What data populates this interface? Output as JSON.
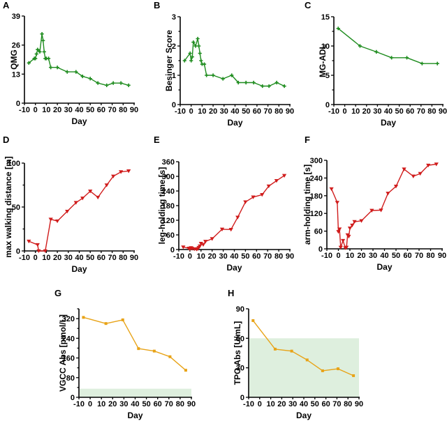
{
  "chart_data": [
    {
      "id": "A",
      "type": "line",
      "panel_label": "A",
      "xlabel": "Day",
      "ylabel": "QMG",
      "xlim": [
        -10,
        90
      ],
      "ylim": [
        0,
        39
      ],
      "xticks": [
        "-10",
        "0",
        "10",
        "20",
        "30",
        "40",
        "50",
        "60",
        "70",
        "80",
        "90"
      ],
      "yticks": [
        "0",
        "13",
        "26",
        "39"
      ],
      "marker": "plus",
      "color": "#1e8c1e",
      "series": [
        {
          "name": "QMG",
          "x": [
            -6,
            -1,
            0,
            1,
            2,
            4,
            6,
            7,
            8,
            9,
            10,
            12,
            14,
            20,
            29,
            37,
            43,
            50,
            57,
            65,
            71,
            78,
            85
          ],
          "y": [
            18,
            20,
            20,
            22,
            24,
            23,
            31,
            28,
            23,
            20,
            20,
            20,
            16,
            16,
            14,
            14,
            12,
            11,
            9,
            8,
            9,
            9,
            8
          ]
        }
      ]
    },
    {
      "id": "B",
      "type": "line",
      "panel_label": "B",
      "xlabel": "Day",
      "ylabel": "Besinger Score",
      "xlim": [
        -10,
        90
      ],
      "ylim": [
        0,
        3
      ],
      "xticks": [
        "-10",
        "0",
        "10",
        "20",
        "30",
        "40",
        "50",
        "60",
        "70",
        "80",
        "90"
      ],
      "yticks": [
        "0",
        "1",
        "2",
        "3"
      ],
      "marker": "plus",
      "color": "#1e8c1e",
      "series": [
        {
          "name": "Besinger Score",
          "x": [
            -6,
            -1,
            0,
            1,
            2,
            4,
            6,
            7,
            8,
            9,
            10,
            12,
            14,
            20,
            29,
            37,
            43,
            50,
            57,
            65,
            71,
            78,
            85
          ],
          "y": [
            1.5,
            1.75,
            1.5,
            1.63,
            2.13,
            2.0,
            2.25,
            2.0,
            1.75,
            1.5,
            1.38,
            1.38,
            1.0,
            1.0,
            0.88,
            1.0,
            0.75,
            0.75,
            0.75,
            0.63,
            0.63,
            0.75,
            0.63
          ]
        }
      ]
    },
    {
      "id": "C",
      "type": "line",
      "panel_label": "C",
      "xlabel": "Day",
      "ylabel": "MG-ADL",
      "xlim": [
        -10,
        90
      ],
      "ylim": [
        0,
        15
      ],
      "xticks": [
        "-10",
        "0",
        "10",
        "20",
        "30",
        "40",
        "50",
        "60",
        "70",
        "80",
        "90"
      ],
      "yticks": [
        "0",
        "5",
        "10",
        "15"
      ],
      "marker": "plus",
      "color": "#1e8c1e",
      "series": [
        {
          "name": "MG-ADL",
          "x": [
            -6,
            14,
            29,
            43,
            57,
            71,
            85
          ],
          "y": [
            13,
            10,
            9,
            8,
            8,
            7,
            7
          ]
        }
      ]
    },
    {
      "id": "D",
      "type": "line",
      "panel_label": "D",
      "xlabel": "Day",
      "ylabel": "max walking distance [m]",
      "xlim": [
        -10,
        90
      ],
      "ylim": [
        0,
        100
      ],
      "xticks": [
        "-10",
        "0",
        "10",
        "20",
        "30",
        "40",
        "50",
        "60",
        "70",
        "80",
        "90"
      ],
      "yticks": [
        "0",
        "50",
        "100"
      ],
      "marker": "triangle-down",
      "color": "#d01c1c",
      "series": [
        {
          "name": "max walking distance",
          "x": [
            -6,
            2,
            3,
            9,
            14,
            20,
            29,
            37,
            43,
            50,
            57,
            65,
            71,
            78,
            85
          ],
          "y": [
            11,
            7,
            0,
            0,
            36,
            34,
            45,
            55,
            60,
            68,
            61,
            75,
            85,
            90,
            91
          ]
        }
      ]
    },
    {
      "id": "E",
      "type": "line",
      "panel_label": "E",
      "xlabel": "Day",
      "ylabel": "leg-holding time [s]",
      "xlim": [
        -10,
        90
      ],
      "ylim": [
        0,
        360
      ],
      "xticks": [
        "-10",
        "0",
        "10",
        "20",
        "30",
        "40",
        "50",
        "60",
        "70",
        "80",
        "90"
      ],
      "yticks": [
        "0",
        "60",
        "120",
        "180",
        "240",
        "300",
        "360"
      ],
      "marker": "triangle-down",
      "color": "#d01c1c",
      "series": [
        {
          "name": "leg-holding time",
          "x": [
            -6,
            -1,
            0,
            1,
            2,
            4,
            6,
            7,
            8,
            9,
            10,
            12,
            14,
            20,
            29,
            37,
            43,
            50,
            57,
            65,
            71,
            78,
            85
          ],
          "y": [
            10,
            5,
            3,
            7,
            4,
            2,
            1,
            3,
            8,
            14,
            25,
            20,
            33,
            44,
            83,
            82,
            132,
            195,
            215,
            225,
            260,
            282,
            303
          ]
        }
      ]
    },
    {
      "id": "F",
      "type": "line",
      "panel_label": "F",
      "xlabel": "Day",
      "ylabel": "arm-holding time [s]",
      "xlim": [
        -10,
        90
      ],
      "ylim": [
        0,
        300
      ],
      "xticks": [
        "-10",
        "0",
        "10",
        "20",
        "30",
        "40",
        "50",
        "60",
        "70",
        "80",
        "90"
      ],
      "yticks": [
        "0",
        "60",
        "120",
        "180",
        "240",
        "300"
      ],
      "marker": "triangle-down",
      "color": "#d01c1c",
      "series": [
        {
          "name": "arm-holding time",
          "x": [
            -6,
            -1,
            0,
            1,
            2,
            4,
            6,
            7,
            8,
            9,
            10,
            12,
            14,
            20,
            29,
            37,
            43,
            50,
            57,
            65,
            71,
            78,
            85
          ],
          "y": [
            203,
            157,
            58,
            67,
            5,
            28,
            3,
            5,
            47,
            42,
            70,
            80,
            92,
            95,
            130,
            131,
            188,
            212,
            270,
            246,
            255,
            283,
            287
          ]
        }
      ]
    },
    {
      "id": "G",
      "type": "line",
      "panel_label": "G",
      "xlabel": "Day",
      "ylabel": "VGCC Abs [pmol/L]",
      "xlim": [
        -10,
        90
      ],
      "ylim": [
        0,
        360
      ],
      "xticks": [
        "-10",
        "0",
        "10",
        "20",
        "30",
        "40",
        "50",
        "60",
        "70",
        "80",
        "90"
      ],
      "yticks": [
        "0",
        "80",
        "160",
        "240",
        "320"
      ],
      "marker": "square",
      "color": "#e8a317",
      "reference_band": {
        "from": 0,
        "to": 35,
        "color": "#deefde"
      },
      "series": [
        {
          "name": "VGCC Abs",
          "x": [
            -6,
            14,
            29,
            43,
            57,
            71,
            85
          ],
          "y": [
            325,
            300,
            315,
            198,
            188,
            165,
            110
          ]
        }
      ]
    },
    {
      "id": "H",
      "type": "line",
      "panel_label": "H",
      "xlabel": "Day",
      "ylabel": "TPO Abs [U/mL]",
      "xlim": [
        -10,
        90
      ],
      "ylim": [
        0,
        90
      ],
      "xticks": [
        "-10",
        "0",
        "10",
        "20",
        "30",
        "40",
        "50",
        "60",
        "70",
        "80",
        "90"
      ],
      "yticks": [
        "0",
        "30",
        "60",
        "90"
      ],
      "marker": "square",
      "color": "#e8a317",
      "reference_band": {
        "from": 0,
        "to": 60,
        "color": "#deefde"
      },
      "series": [
        {
          "name": "TPO Abs",
          "x": [
            -6,
            14,
            29,
            43,
            57,
            71,
            85
          ],
          "y": [
            78,
            49,
            47,
            38,
            27,
            29,
            22
          ]
        }
      ]
    }
  ]
}
